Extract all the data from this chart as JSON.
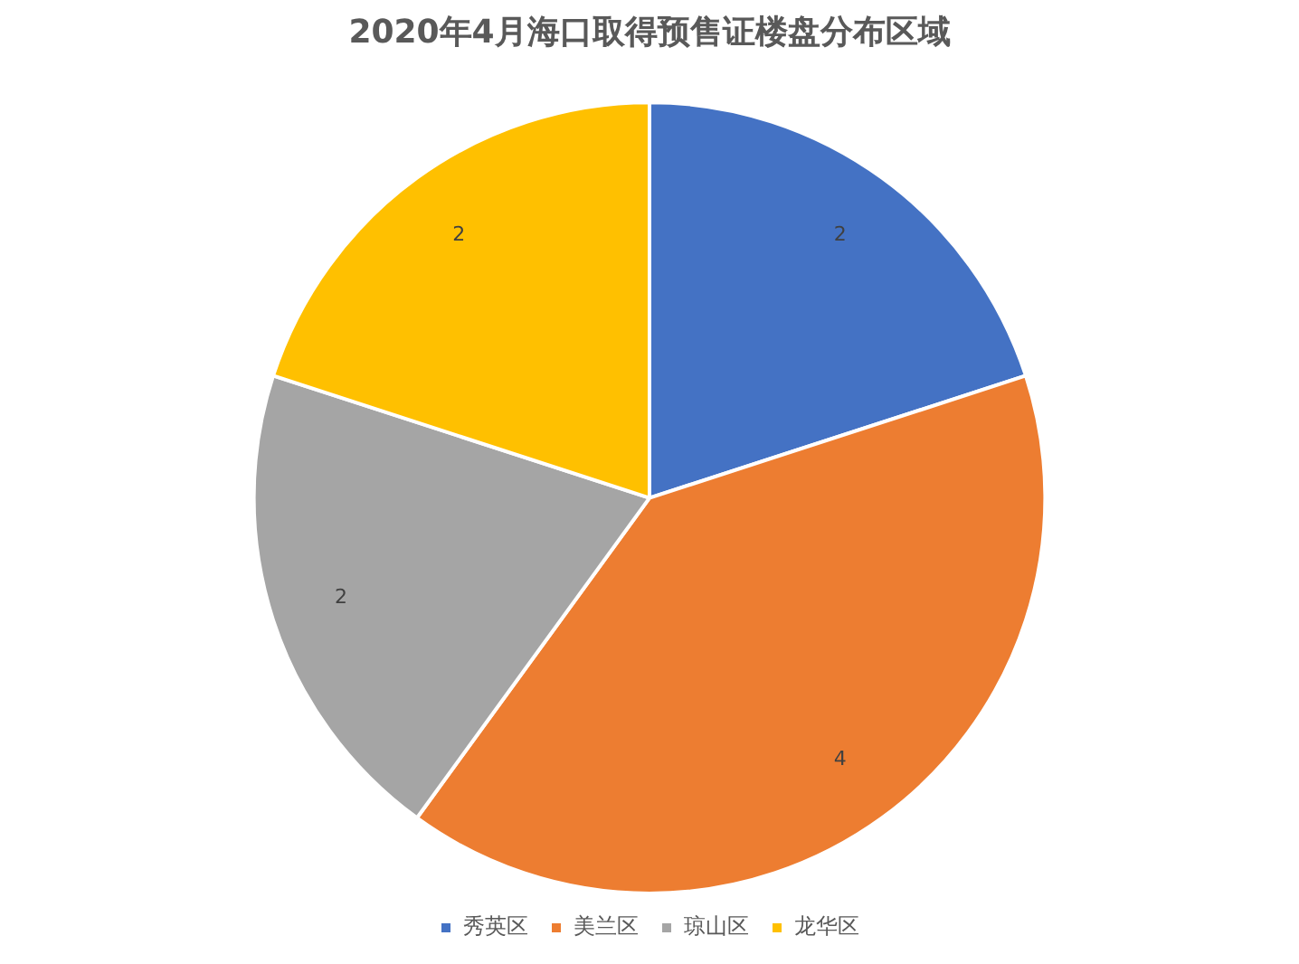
{
  "chart_data": {
    "type": "pie",
    "title": "2020年4月海口取得预售证楼盘分布区域",
    "categories": [
      "秀英区",
      "美兰区",
      "琼山区",
      "龙华区"
    ],
    "values": [
      2,
      4,
      2,
      2
    ],
    "colors": [
      "#4472c4",
      "#ed7d31",
      "#a5a5a5",
      "#ffc000"
    ],
    "data_labels": true,
    "legend": "bottom"
  }
}
